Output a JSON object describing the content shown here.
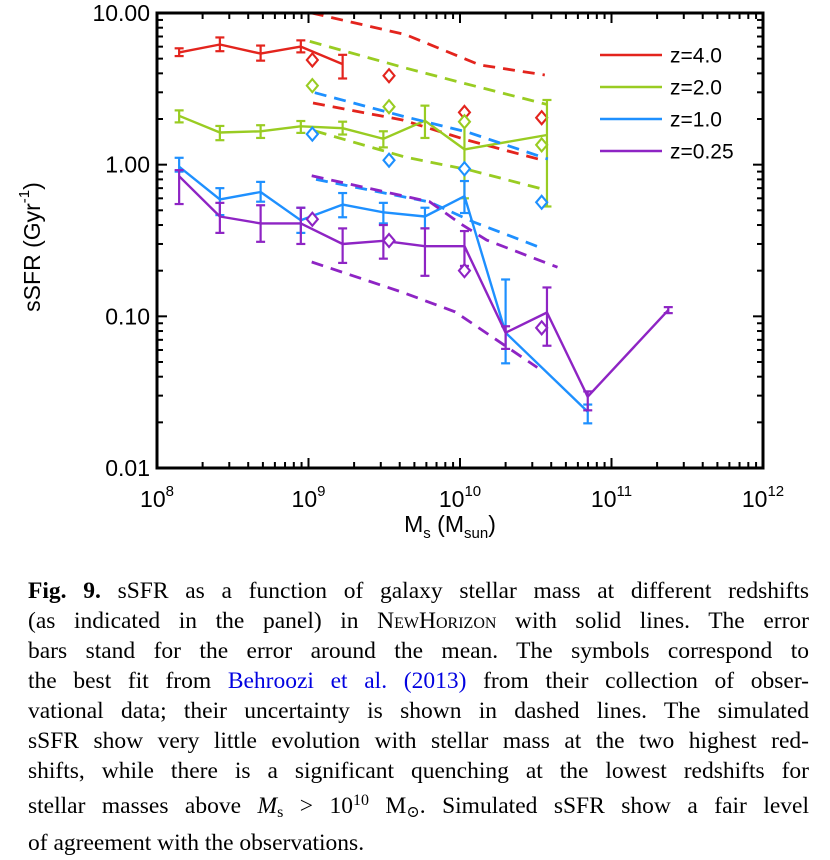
{
  "page": {
    "background": "#ffffff"
  },
  "figure": {
    "caption_lines": [
      [
        {
          "t": "Fig. 9.",
          "s": "b"
        },
        {
          "t": " sSFR as a function of galaxy stellar mass at different redshifts"
        }
      ],
      [
        {
          "t": "(as indicated in the panel) in "
        },
        {
          "t": "NewHorizon",
          "s": "sc"
        },
        {
          "t": " with solid lines. The error"
        }
      ],
      [
        {
          "t": "bars stand for the error around the mean. The symbols correspond to"
        }
      ],
      [
        {
          "t": "the best fit from "
        },
        {
          "t": "Behroozi et al.",
          "s": "link"
        },
        {
          "t": " "
        },
        {
          "t": "(2013)",
          "s": "link"
        },
        {
          "t": " from their collection of obser-"
        }
      ],
      [
        {
          "t": "vational data; their uncertainty is shown in dashed lines. The simulated"
        }
      ],
      [
        {
          "t": "sSFR show very little evolution with stellar mass at the two highest red-"
        }
      ],
      [
        {
          "t": "shifts, while there is a significant quenching at the lowest redshifts for"
        }
      ],
      [
        {
          "t": "stellar masses above "
        },
        {
          "t": "M",
          "s": "i"
        },
        {
          "t": "s",
          "s": "sub"
        },
        {
          "t": " > 10"
        },
        {
          "t": "10",
          "s": "sup"
        },
        {
          "t": " M"
        },
        {
          "t": "⊙",
          "s": "sub"
        },
        {
          "t": ". Simulated sSFR show a fair level"
        }
      ],
      [
        {
          "t": "of agreement with the observations."
        }
      ]
    ]
  },
  "chart_data": {
    "type": "line",
    "title": "",
    "x_scale": "log",
    "y_scale": "log",
    "xlim": [
      100000000.0,
      1000000000000.0
    ],
    "ylim": [
      0.01,
      10
    ],
    "x_tick_exponents": [
      8,
      9,
      10,
      11,
      12
    ],
    "y_tick_labels": [
      "10.00",
      "1.00",
      "0.10",
      "0.01"
    ],
    "y_tick_values": [
      10,
      1,
      0.1,
      0.01
    ],
    "xlabel_parts": [
      {
        "t": "M"
      },
      {
        "t": "s",
        "s": "sub"
      },
      {
        "t": " (M"
      },
      {
        "t": "sun",
        "s": "sub"
      },
      {
        "t": ")"
      }
    ],
    "ylabel_parts": [
      {
        "t": "sSFR (Gyr"
      },
      {
        "t": "-1",
        "s": "sup"
      },
      {
        "t": ")"
      }
    ],
    "legend_position": "top-right",
    "series": [
      {
        "key": "z4",
        "name": "z=4.0",
        "color": "#e3241d",
        "x": [
          140000000.0,
          260000000.0,
          483000000.0,
          890000000.0,
          1680000000.0
        ],
        "y": [
          5.5,
          6.2,
          5.4,
          6.0,
          4.6
        ],
        "err_lo": [
          5.2,
          5.6,
          4.85,
          5.5,
          3.7
        ],
        "err_hi": [
          5.85,
          6.9,
          6.1,
          6.6,
          5.3
        ],
        "symbols_x": [
          1060000000.0,
          3400000000.0,
          10700000000.0,
          34600000000.0
        ],
        "symbols_y": [
          4.9,
          3.86,
          2.21,
          2.04
        ],
        "dashed_upper_x": [
          1050000000.0,
          4370000000.0,
          13500000000.0,
          36300000000.0
        ],
        "dashed_upper_y": [
          10.0,
          7.2,
          4.55,
          3.9
        ],
        "dashed_lower_x": [
          1070000000.0,
          4170000000.0,
          11200000000.0,
          36300000000.0
        ],
        "dashed_lower_y": [
          2.55,
          1.97,
          1.45,
          1.06
        ]
      },
      {
        "key": "z2",
        "name": "z=2.0",
        "color": "#99cc22",
        "x": [
          140000000.0,
          260000000.0,
          483000000.0,
          890000000.0,
          1680000000.0,
          3120000000.0,
          5870000000.0,
          10700000000.0,
          37500000000.0
        ],
        "y": [
          2.1,
          1.63,
          1.66,
          1.79,
          1.74,
          1.48,
          1.95,
          1.26,
          1.57
        ],
        "err_lo": [
          1.9,
          1.45,
          1.5,
          1.62,
          1.58,
          1.3,
          1.5,
          0.6,
          0.53
        ],
        "err_hi": [
          2.28,
          1.8,
          1.82,
          1.94,
          1.92,
          1.66,
          2.45,
          1.9,
          2.67
        ],
        "symbols_x": [
          1060000000.0,
          3400000000.0,
          10700000000.0,
          34600000000.0
        ],
        "symbols_y": [
          3.32,
          2.41,
          1.92,
          1.35
        ],
        "dashed_upper_x": [
          1020000000.0,
          4370000000.0,
          10500000000.0,
          37200000000.0
        ],
        "dashed_upper_y": [
          6.5,
          4.34,
          3.45,
          2.5
        ],
        "dashed_lower_x": [
          1100000000.0,
          4370000000.0,
          11700000000.0,
          37200000000.0
        ],
        "dashed_lower_y": [
          1.67,
          1.12,
          0.92,
          0.68
        ]
      },
      {
        "key": "z1",
        "name": "z=1.0",
        "color": "#1e90ff",
        "x": [
          140000000.0,
          260000000.0,
          483000000.0,
          890000000.0,
          1680000000.0,
          3120000000.0,
          5870000000.0,
          10700000000.0,
          20000000000.0,
          69700000000.0
        ],
        "y": [
          0.97,
          0.59,
          0.66,
          0.43,
          0.545,
          0.485,
          0.455,
          0.62,
          0.078,
          0.0235
        ],
        "err_lo": [
          0.9,
          0.465,
          0.57,
          0.355,
          0.45,
          0.41,
          0.38,
          0.48,
          0.049,
          0.0197
        ],
        "err_hi": [
          1.11,
          0.7,
          0.77,
          0.52,
          0.65,
          0.56,
          0.52,
          0.78,
          0.175,
          0.0262
        ],
        "symbols_x": [
          1060000000.0,
          3400000000.0,
          10700000000.0,
          34600000000.0
        ],
        "symbols_y": [
          1.59,
          1.07,
          0.94,
          0.565
        ],
        "dashed_upper_x": [
          1100000000.0,
          4170000000.0,
          11200000000.0,
          38000000000.0
        ],
        "dashed_upper_y": [
          2.98,
          2.09,
          1.64,
          1.09
        ],
        "dashed_lower_x": [
          1120000000.0,
          6300000000.0,
          12300000000.0,
          33000000000.0
        ],
        "dashed_lower_y": [
          0.8,
          0.567,
          0.419,
          0.287
        ]
      },
      {
        "key": "z025",
        "name": "z=0.25",
        "color": "#8e24c4",
        "x": [
          140000000.0,
          260000000.0,
          483000000.0,
          890000000.0,
          1680000000.0,
          3120000000.0,
          5870000000.0,
          10700000000.0,
          20000000000.0,
          37500000000.0,
          69700000000.0,
          237000000000.0
        ],
        "y": [
          0.84,
          0.455,
          0.41,
          0.41,
          0.3,
          0.315,
          0.29,
          0.29,
          0.078,
          0.106,
          0.0295,
          0.11
        ],
        "err_lo": [
          0.55,
          0.355,
          0.31,
          0.3,
          0.225,
          0.24,
          0.185,
          0.215,
          0.061,
          0.064,
          0.024,
          0.105
        ],
        "err_hi": [
          0.92,
          0.56,
          0.54,
          0.52,
          0.38,
          0.4,
          0.38,
          0.365,
          0.086,
          0.155,
          0.032,
          0.115
        ],
        "symbols_x": [
          1060000000.0,
          3400000000.0,
          10700000000.0,
          34600000000.0
        ],
        "symbols_y": [
          0.437,
          0.316,
          0.2,
          0.084
        ],
        "dashed_upper_x": [
          1050000000.0,
          6300000000.0,
          10000000000.0,
          15000000000.0,
          44000000000.0
        ],
        "dashed_upper_y": [
          0.845,
          0.57,
          0.41,
          0.318,
          0.211
        ],
        "dashed_lower_x": [
          1050000000.0,
          4170000000.0,
          9300000000.0,
          32400000000.0
        ],
        "dashed_lower_y": [
          0.228,
          0.144,
          0.107,
          0.046
        ]
      }
    ]
  }
}
